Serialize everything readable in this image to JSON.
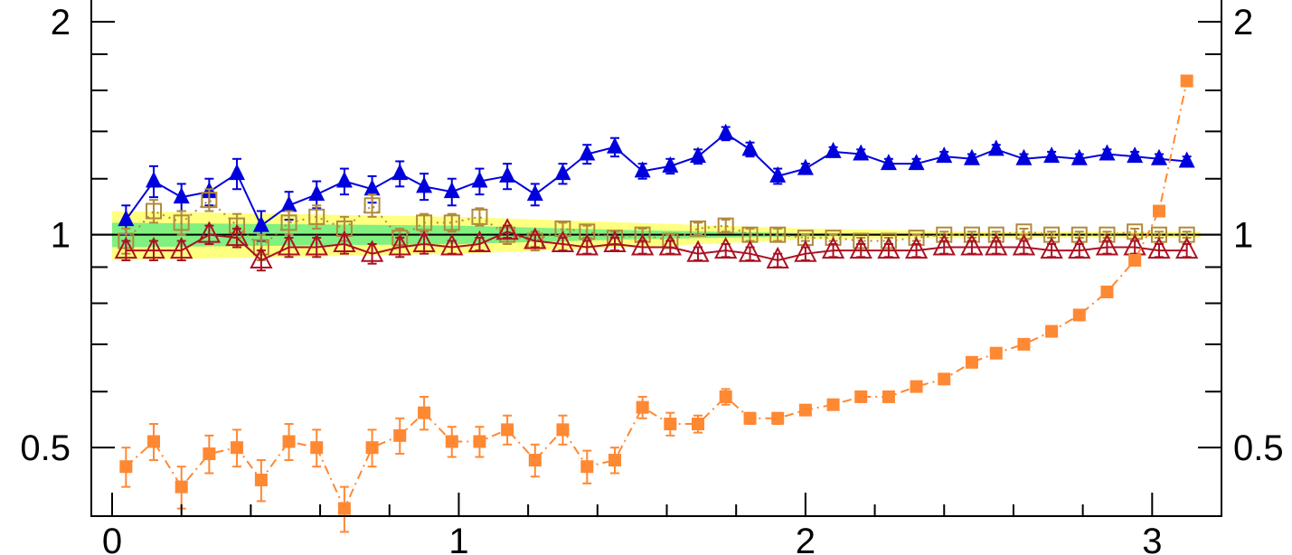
{
  "chart_data": {
    "type": "line",
    "title": "",
    "xlabel": "",
    "ylabel": "",
    "xlim": [
      -0.06,
      3.2
    ],
    "ylim": [
      0.4,
      2.16
    ],
    "yscale": "log",
    "grid": false,
    "x_ticks": [
      {
        "value": 0,
        "label": "0"
      },
      {
        "value": 1,
        "label": "1"
      },
      {
        "value": 2,
        "label": "2"
      },
      {
        "value": 3,
        "label": "3"
      }
    ],
    "y_ticks": [
      {
        "value": 0.5,
        "label": "0.5"
      },
      {
        "value": 1,
        "label": "1"
      },
      {
        "value": 2,
        "label": "2"
      }
    ],
    "reference_line": 1,
    "bands": [
      {
        "name": "outer-band",
        "color": "#ffff80",
        "x": [
          0.0,
          0.5,
          1.0,
          1.5,
          2.0,
          2.5,
          3.0,
          3.14
        ],
        "lower": [
          0.92,
          0.93,
          0.94,
          0.96,
          0.985,
          0.99,
          0.99,
          0.99
        ],
        "upper": [
          1.08,
          1.07,
          1.06,
          1.04,
          1.02,
          1.01,
          1.01,
          1.01
        ]
      },
      {
        "name": "inner-band",
        "color": "#80f080",
        "x": [
          0.0,
          0.5,
          1.0,
          1.5,
          2.0,
          2.5,
          3.0,
          3.14
        ],
        "lower": [
          0.96,
          0.965,
          0.97,
          0.985,
          0.995,
          0.997,
          0.997,
          0.997
        ],
        "upper": [
          1.04,
          1.035,
          1.03,
          1.015,
          1.005,
          1.003,
          1.003,
          1.003
        ]
      }
    ],
    "x": [
      0.04,
      0.12,
      0.2,
      0.28,
      0.36,
      0.43,
      0.51,
      0.59,
      0.67,
      0.75,
      0.83,
      0.9,
      0.98,
      1.06,
      1.14,
      1.22,
      1.3,
      1.37,
      1.45,
      1.53,
      1.61,
      1.69,
      1.77,
      1.84,
      1.92,
      2.0,
      2.08,
      2.16,
      2.24,
      2.32,
      2.4,
      2.48,
      2.55,
      2.63,
      2.71,
      2.79,
      2.87,
      2.95,
      3.02,
      3.1
    ],
    "series": [
      {
        "marker": "filled-triangle",
        "color": "#0000dd",
        "line_style": "solid",
        "values": [
          1.05,
          1.19,
          1.13,
          1.15,
          1.22,
          1.03,
          1.1,
          1.14,
          1.19,
          1.16,
          1.22,
          1.17,
          1.15,
          1.19,
          1.21,
          1.14,
          1.22,
          1.3,
          1.33,
          1.23,
          1.25,
          1.29,
          1.39,
          1.32,
          1.21,
          1.24,
          1.31,
          1.3,
          1.26,
          1.26,
          1.29,
          1.28,
          1.32,
          1.28,
          1.29,
          1.28,
          1.3,
          1.29,
          1.28,
          1.27
        ],
        "errors": [
          0.05,
          0.06,
          0.05,
          0.05,
          0.06,
          0.05,
          0.05,
          0.05,
          0.05,
          0.05,
          0.05,
          0.05,
          0.05,
          0.05,
          0.05,
          0.04,
          0.04,
          0.04,
          0.04,
          0.03,
          0.03,
          0.03,
          0.03,
          0.03,
          0.03,
          0.02,
          0.02,
          0.02,
          0.02,
          0.02,
          0.02,
          0.02,
          0.02,
          0.02,
          0.02,
          0.02,
          0.02,
          0.02,
          0.02,
          0.02
        ]
      },
      {
        "marker": "open-square",
        "color": "#b08a3a",
        "line_style": "dotted",
        "values": [
          0.98,
          1.08,
          1.04,
          1.12,
          1.03,
          0.96,
          1.04,
          1.06,
          1.02,
          1.1,
          0.99,
          1.04,
          1.04,
          1.06,
          1.0,
          0.98,
          1.02,
          1.01,
          0.99,
          1.0,
          0.98,
          1.02,
          1.03,
          1.0,
          1.0,
          0.99,
          0.99,
          0.98,
          0.98,
          0.99,
          1.0,
          1.0,
          1.0,
          1.01,
          1.0,
          1.0,
          1.0,
          1.01,
          1.0,
          1.0
        ],
        "errors": [
          0.04,
          0.04,
          0.04,
          0.04,
          0.04,
          0.04,
          0.04,
          0.04,
          0.04,
          0.04,
          0.03,
          0.03,
          0.03,
          0.03,
          0.03,
          0.03,
          0.02,
          0.02,
          0.02,
          0.02,
          0.02,
          0.02,
          0.02,
          0.02,
          0.02,
          0.01,
          0.01,
          0.01,
          0.01,
          0.01,
          0.01,
          0.01,
          0.01,
          0.01,
          0.01,
          0.01,
          0.01,
          0.01,
          0.01,
          0.01
        ]
      },
      {
        "marker": "open-triangle",
        "color": "#aa1122",
        "line_style": "solid",
        "values": [
          0.95,
          0.95,
          0.95,
          1.0,
          0.99,
          0.92,
          0.96,
          0.96,
          0.97,
          0.94,
          0.96,
          0.97,
          0.96,
          0.97,
          1.01,
          0.98,
          0.97,
          0.96,
          0.97,
          0.96,
          0.96,
          0.94,
          0.95,
          0.94,
          0.92,
          0.94,
          0.95,
          0.95,
          0.95,
          0.95,
          0.96,
          0.96,
          0.96,
          0.96,
          0.95,
          0.95,
          0.96,
          0.96,
          0.95,
          0.95
        ],
        "errors": [
          0.03,
          0.03,
          0.03,
          0.03,
          0.03,
          0.03,
          0.03,
          0.03,
          0.03,
          0.03,
          0.03,
          0.03,
          0.02,
          0.02,
          0.02,
          0.02,
          0.02,
          0.02,
          0.02,
          0.02,
          0.02,
          0.02,
          0.02,
          0.02,
          0.02,
          0.02,
          0.02,
          0.02,
          0.02,
          0.02,
          0.02,
          0.02,
          0.02,
          0.02,
          0.02,
          0.02,
          0.02,
          0.02,
          0.02,
          0.02
        ]
      },
      {
        "marker": "filled-square",
        "color": "#ff8833",
        "line_style": "dash-dot",
        "values": [
          0.47,
          0.51,
          0.44,
          0.49,
          0.5,
          0.45,
          0.51,
          0.5,
          0.41,
          0.5,
          0.52,
          0.56,
          0.51,
          0.51,
          0.53,
          0.48,
          0.53,
          0.47,
          0.48,
          0.57,
          0.54,
          0.54,
          0.59,
          0.55,
          0.55,
          0.565,
          0.575,
          0.59,
          0.59,
          0.61,
          0.625,
          0.66,
          0.68,
          0.7,
          0.73,
          0.77,
          0.83,
          0.92,
          1.08,
          1.65
        ],
        "errors": [
          0.03,
          0.03,
          0.03,
          0.03,
          0.03,
          0.03,
          0.03,
          0.03,
          0.03,
          0.03,
          0.03,
          0.03,
          0.025,
          0.025,
          0.025,
          0.025,
          0.025,
          0.025,
          0.02,
          0.02,
          0.02,
          0.015,
          0.015,
          0.01,
          0.01,
          0.008,
          0.008,
          0.008,
          0.008,
          0.008,
          0.008,
          0.008,
          0.008,
          0.008,
          0.008,
          0.008,
          0.008,
          0.008,
          0.008,
          0.008
        ]
      }
    ]
  }
}
